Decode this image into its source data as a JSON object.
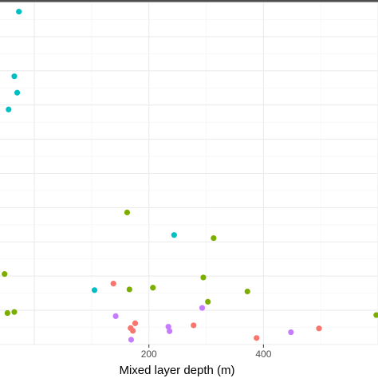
{
  "chart_data": {
    "type": "scatter",
    "title": "",
    "xlabel": "Mixed layer depth (m)",
    "ylabel": "",
    "xlim": [
      -60,
      600
    ],
    "ylim": [
      0,
      1
    ],
    "x_ticks": [
      200,
      400
    ],
    "x_tick_labels": [
      "200",
      "400"
    ],
    "grid": true,
    "legend": "none",
    "colors": {
      "red": "#F8766D",
      "green": "#7CAE00",
      "teal": "#00BFC4",
      "purple": "#C77CFF"
    },
    "series": [
      {
        "color_key": "red",
        "points": [
          {
            "x": 138,
            "y": 0.178
          },
          {
            "x": 172,
            "y": 0.04
          },
          {
            "x": 176,
            "y": 0.062
          },
          {
            "x": 168,
            "y": 0.048
          },
          {
            "x": 278,
            "y": 0.056
          },
          {
            "x": 388,
            "y": 0.019
          },
          {
            "x": 497,
            "y": 0.047
          }
        ]
      },
      {
        "color_key": "green",
        "points": [
          {
            "x": 162,
            "y": 0.386
          },
          {
            "x": 313,
            "y": 0.311
          },
          {
            "x": -52,
            "y": 0.206
          },
          {
            "x": 166,
            "y": 0.161
          },
          {
            "x": 207,
            "y": 0.166
          },
          {
            "x": 295,
            "y": 0.196
          },
          {
            "x": 372,
            "y": 0.155
          },
          {
            "x": 303,
            "y": 0.125
          },
          {
            "x": -47,
            "y": 0.092
          },
          {
            "x": -35,
            "y": 0.095
          },
          {
            "x": 597,
            "y": 0.086
          }
        ]
      },
      {
        "color_key": "teal",
        "points": [
          {
            "x": -27,
            "y": 0.973
          },
          {
            "x": -35,
            "y": 0.784
          },
          {
            "x": -30,
            "y": 0.736
          },
          {
            "x": -45,
            "y": 0.687
          },
          {
            "x": 244,
            "y": 0.32
          },
          {
            "x": 105,
            "y": 0.159
          }
        ]
      },
      {
        "color_key": "purple",
        "points": [
          {
            "x": 142,
            "y": 0.083
          },
          {
            "x": 293,
            "y": 0.107
          },
          {
            "x": 234,
            "y": 0.052
          },
          {
            "x": 236,
            "y": 0.039
          },
          {
            "x": 169,
            "y": 0.014
          },
          {
            "x": 448,
            "y": 0.036
          }
        ]
      }
    ]
  }
}
